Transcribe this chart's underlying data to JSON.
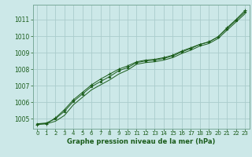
{
  "xlabel": "Graphe pression niveau de la mer (hPa)",
  "bg_color": "#cce8e8",
  "grid_color": "#aacccc",
  "line_color": "#1a5c1a",
  "text_color": "#1a5c1a",
  "spine_color": "#7aaa9a",
  "xlim": [
    -0.5,
    23.5
  ],
  "ylim": [
    1004.4,
    1011.9
  ],
  "yticks": [
    1005,
    1006,
    1007,
    1008,
    1009,
    1010,
    1011
  ],
  "xticks": [
    0,
    1,
    2,
    3,
    4,
    5,
    6,
    7,
    8,
    9,
    10,
    11,
    12,
    13,
    14,
    15,
    16,
    17,
    18,
    19,
    20,
    21,
    22,
    23
  ],
  "line1_x": [
    0,
    1,
    2,
    3,
    4,
    5,
    6,
    7,
    8,
    9,
    10,
    11,
    12,
    13,
    14,
    15,
    16,
    17,
    18,
    19,
    20,
    21,
    22,
    23
  ],
  "line1": [
    1004.7,
    1004.7,
    1004.85,
    1005.2,
    1005.85,
    1006.3,
    1006.75,
    1007.05,
    1007.35,
    1007.7,
    1007.95,
    1008.3,
    1008.4,
    1008.45,
    1008.55,
    1008.7,
    1008.95,
    1009.15,
    1009.4,
    1009.55,
    1009.85,
    1010.35,
    1010.85,
    1011.35
  ],
  "line2_x": [
    0,
    1,
    2,
    3,
    4,
    5,
    6,
    7,
    8,
    9,
    10,
    11,
    12,
    13,
    14,
    15,
    16,
    17,
    18,
    19,
    20,
    21,
    22,
    23
  ],
  "line2": [
    1004.7,
    1004.75,
    1005.0,
    1005.45,
    1006.05,
    1006.5,
    1006.95,
    1007.25,
    1007.55,
    1007.9,
    1008.1,
    1008.4,
    1008.5,
    1008.55,
    1008.65,
    1008.8,
    1009.05,
    1009.25,
    1009.5,
    1009.65,
    1009.95,
    1010.45,
    1010.95,
    1011.45
  ],
  "line3_x": [
    0,
    1,
    2,
    3,
    4,
    5,
    6,
    7,
    8,
    9,
    10,
    11,
    12,
    13,
    14,
    15,
    16,
    17,
    18,
    19,
    20,
    21,
    22,
    23
  ],
  "line3": [
    1004.65,
    1004.7,
    1005.05,
    1005.55,
    1006.15,
    1006.6,
    1007.05,
    1007.4,
    1007.7,
    1008.0,
    1008.2,
    1008.45,
    1008.55,
    1008.6,
    1008.7,
    1008.85,
    1009.1,
    1009.3,
    1009.5,
    1009.65,
    1009.95,
    1010.5,
    1011.0,
    1011.55
  ]
}
